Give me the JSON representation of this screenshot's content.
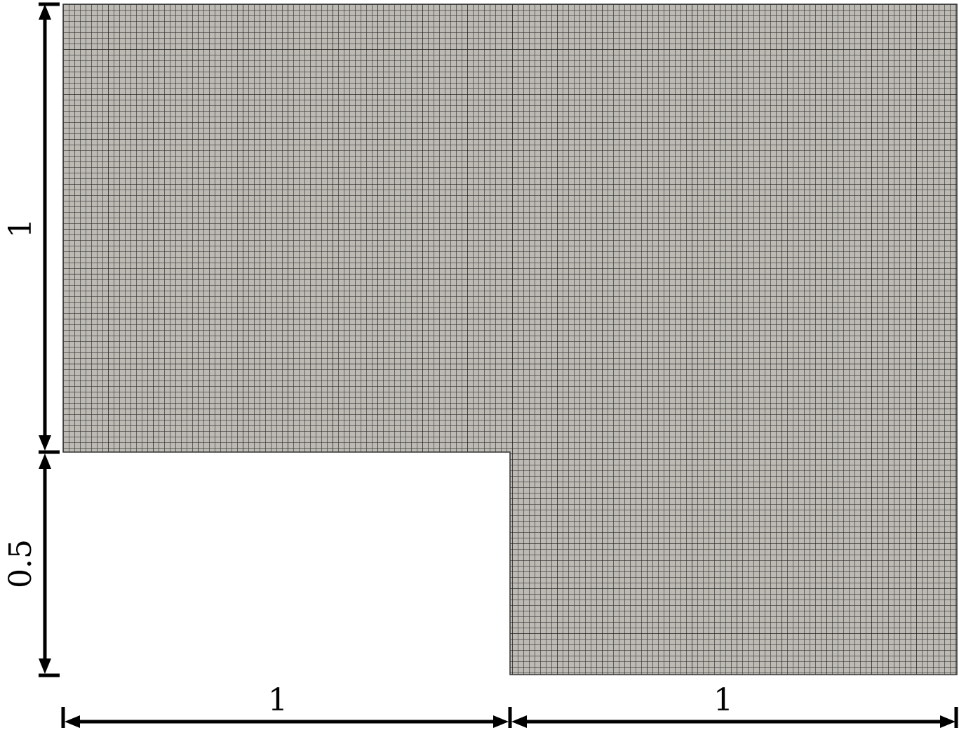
{
  "diagram": {
    "colors": {
      "mesh_fill": "#bdbab4",
      "mesh_line": "#1a1a1a",
      "dimension_line": "#000000",
      "background": "#ffffff"
    },
    "dimensions": {
      "left_upper_height": "1",
      "left_lower_height": "0.5",
      "bottom_left_width": "1",
      "bottom_right_width": "1"
    }
  }
}
